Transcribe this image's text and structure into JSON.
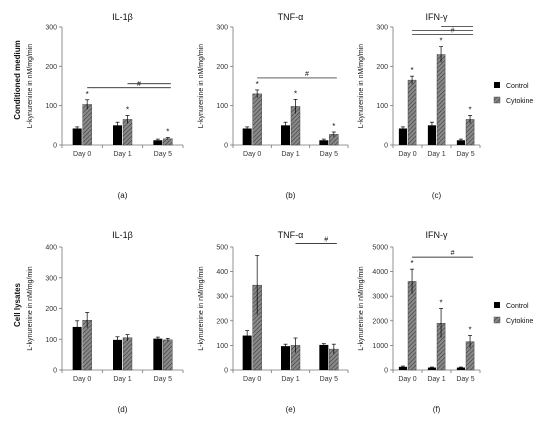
{
  "figure": {
    "row_labels": [
      "Conditioned medium",
      "Cell lysates"
    ],
    "legend": {
      "control": "Control",
      "cytokine": "Cytokine"
    },
    "colors": {
      "control": "#000000",
      "cytokine": "#7a7a7a"
    }
  },
  "chart_data": [
    {
      "type": "bar",
      "panel": "(a)",
      "title": "IL-1β",
      "ylabel": "L-kynurenine in nM/mg/min",
      "categories": [
        "Day 0",
        "Day 1",
        "Day 5"
      ],
      "ylim": [
        0,
        300
      ],
      "yticks": [
        0,
        100,
        200,
        300
      ],
      "series": [
        {
          "name": "Control",
          "values": [
            42,
            50,
            12
          ],
          "errors": [
            4,
            8,
            3
          ]
        },
        {
          "name": "Cytokine",
          "values": [
            103,
            65,
            16
          ],
          "errors": [
            12,
            10,
            3
          ]
        }
      ],
      "stars": [
        "*",
        "*",
        "*"
      ],
      "significance": [
        {
          "from": 0,
          "to": 2,
          "label": "#"
        },
        {
          "from": 1,
          "to": 2,
          "label": ""
        }
      ]
    },
    {
      "type": "bar",
      "panel": "(b)",
      "title": "TNF-α",
      "ylabel": "L-kynurenine in nM/mg/min",
      "categories": [
        "Day 0",
        "Day 1",
        "Day 5"
      ],
      "ylim": [
        0,
        300
      ],
      "yticks": [
        0,
        100,
        200,
        300
      ],
      "series": [
        {
          "name": "Control",
          "values": [
            42,
            50,
            12
          ],
          "errors": [
            4,
            8,
            3
          ]
        },
        {
          "name": "Cytokine",
          "values": [
            130,
            98,
            27
          ],
          "errors": [
            10,
            18,
            6
          ]
        }
      ],
      "stars": [
        "*",
        "*",
        "*"
      ],
      "significance": [
        {
          "from": 0,
          "to": 2,
          "label": "#"
        }
      ]
    },
    {
      "type": "bar",
      "panel": "(c)",
      "title": "IFN-γ",
      "ylabel": "L-kynurenine in nM/mg/min",
      "categories": [
        "Day 0",
        "Day 1",
        "Day 5"
      ],
      "ylim": [
        0,
        300
      ],
      "yticks": [
        0,
        100,
        200,
        300
      ],
      "series": [
        {
          "name": "Control",
          "values": [
            42,
            50,
            12
          ],
          "errors": [
            4,
            8,
            3
          ]
        },
        {
          "name": "Cytokine",
          "values": [
            165,
            230,
            65
          ],
          "errors": [
            10,
            20,
            10
          ]
        }
      ],
      "stars": [
        "*",
        "*",
        "*"
      ],
      "significance": [
        {
          "from": 0,
          "to": 2,
          "label": "#"
        },
        {
          "from": 0,
          "to": 2,
          "label": ""
        },
        {
          "from": 1,
          "to": 2,
          "label": ""
        }
      ]
    },
    {
      "type": "bar",
      "panel": "(d)",
      "title": "IL-1β",
      "ylabel": "L-kynurenine in nM/mg/min",
      "categories": [
        "Day 0",
        "Day 1",
        "Day 5"
      ],
      "ylim": [
        0,
        400
      ],
      "yticks": [
        0,
        100,
        200,
        300,
        400
      ],
      "series": [
        {
          "name": "Control",
          "values": [
            140,
            98,
            102
          ],
          "errors": [
            20,
            10,
            5
          ]
        },
        {
          "name": "Cytokine",
          "values": [
            162,
            105,
            98
          ],
          "errors": [
            25,
            10,
            5
          ]
        }
      ],
      "stars": [
        "",
        "",
        ""
      ],
      "significance": []
    },
    {
      "type": "bar",
      "panel": "(e)",
      "title": "TNF-α",
      "ylabel": "L-kynurenine in nM/mg/min",
      "categories": [
        "Day 0",
        "Day 1",
        "Day 5"
      ],
      "ylim": [
        0,
        500
      ],
      "yticks": [
        0,
        100,
        200,
        300,
        400,
        500
      ],
      "series": [
        {
          "name": "Control",
          "values": [
            140,
            97,
            102
          ],
          "errors": [
            20,
            8,
            5
          ]
        },
        {
          "name": "Cytokine",
          "values": [
            345,
            100,
            85
          ],
          "errors": [
            120,
            30,
            20
          ]
        }
      ],
      "stars": [
        "",
        "",
        ""
      ],
      "significance": [
        {
          "from": 1,
          "to": 2,
          "label": "#"
        }
      ]
    },
    {
      "type": "bar",
      "panel": "(f)",
      "title": "IFN-γ",
      "ylabel": "L-kynurenine in nM/mg/min",
      "categories": [
        "Day 0",
        "Day 1",
        "Day 5"
      ],
      "ylim": [
        0,
        5000
      ],
      "yticks": [
        0,
        1000,
        2000,
        3000,
        4000,
        5000
      ],
      "series": [
        {
          "name": "Control",
          "values": [
            130,
            100,
            100
          ],
          "errors": [
            30,
            20,
            20
          ]
        },
        {
          "name": "Cytokine",
          "values": [
            3600,
            1900,
            1150
          ],
          "errors": [
            500,
            600,
            250
          ]
        }
      ],
      "stars": [
        "*",
        "*",
        "*"
      ],
      "significance": [
        {
          "from": 0,
          "to": 2,
          "label": "#"
        }
      ]
    }
  ]
}
